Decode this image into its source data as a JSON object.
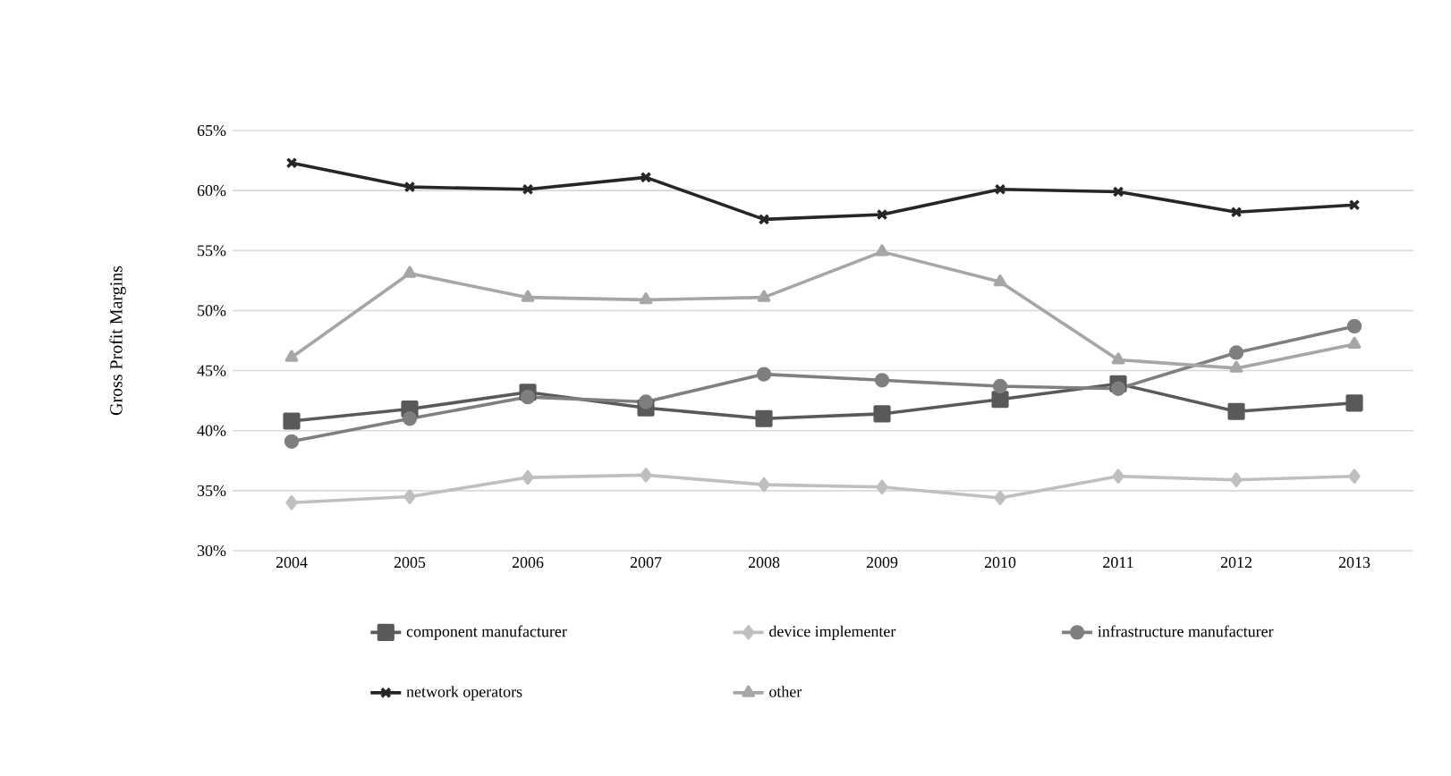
{
  "chart_data": {
    "type": "line",
    "ylabel": "Gross Profit Margins",
    "categories": [
      "2004",
      "2005",
      "2006",
      "2007",
      "2008",
      "2009",
      "2010",
      "2011",
      "2012",
      "2013"
    ],
    "series": [
      {
        "name": "component manufacturer",
        "color": "#595959",
        "marker": "square",
        "values": [
          40.8,
          41.8,
          43.2,
          41.9,
          41.0,
          41.4,
          42.6,
          43.9,
          41.6,
          42.3
        ]
      },
      {
        "name": "device implementer",
        "color": "#bfbfbf",
        "marker": "diamond",
        "values": [
          34.0,
          34.5,
          36.1,
          36.3,
          35.5,
          35.3,
          34.4,
          36.2,
          35.9,
          36.2
        ]
      },
      {
        "name": "infrastructure manufacturer",
        "color": "#7f7f7f",
        "marker": "circle",
        "values": [
          39.1,
          41.0,
          42.8,
          42.4,
          44.7,
          44.2,
          43.7,
          43.5,
          46.5,
          48.7
        ]
      },
      {
        "name": "network operators",
        "color": "#262626",
        "marker": "cross",
        "values": [
          62.3,
          60.3,
          60.1,
          61.1,
          57.6,
          58.0,
          60.1,
          59.9,
          58.2,
          58.8
        ]
      },
      {
        "name": "other",
        "color": "#a6a6a6",
        "marker": "triangle",
        "values": [
          46.1,
          53.1,
          51.1,
          50.9,
          51.1,
          54.9,
          52.4,
          45.9,
          45.2,
          47.2
        ]
      }
    ],
    "ylim": [
      30,
      65
    ],
    "yticks": [
      {
        "value": 30,
        "label": "30%"
      },
      {
        "value": 35,
        "label": "35%"
      },
      {
        "value": 40,
        "label": "40%"
      },
      {
        "value": 45,
        "label": "45%"
      },
      {
        "value": 50,
        "label": "50%"
      },
      {
        "value": 55,
        "label": "55%"
      },
      {
        "value": 60,
        "label": "60%"
      },
      {
        "value": 65,
        "label": "65%"
      }
    ],
    "grid": "y",
    "legend": "bottom",
    "line_style": "solid"
  }
}
